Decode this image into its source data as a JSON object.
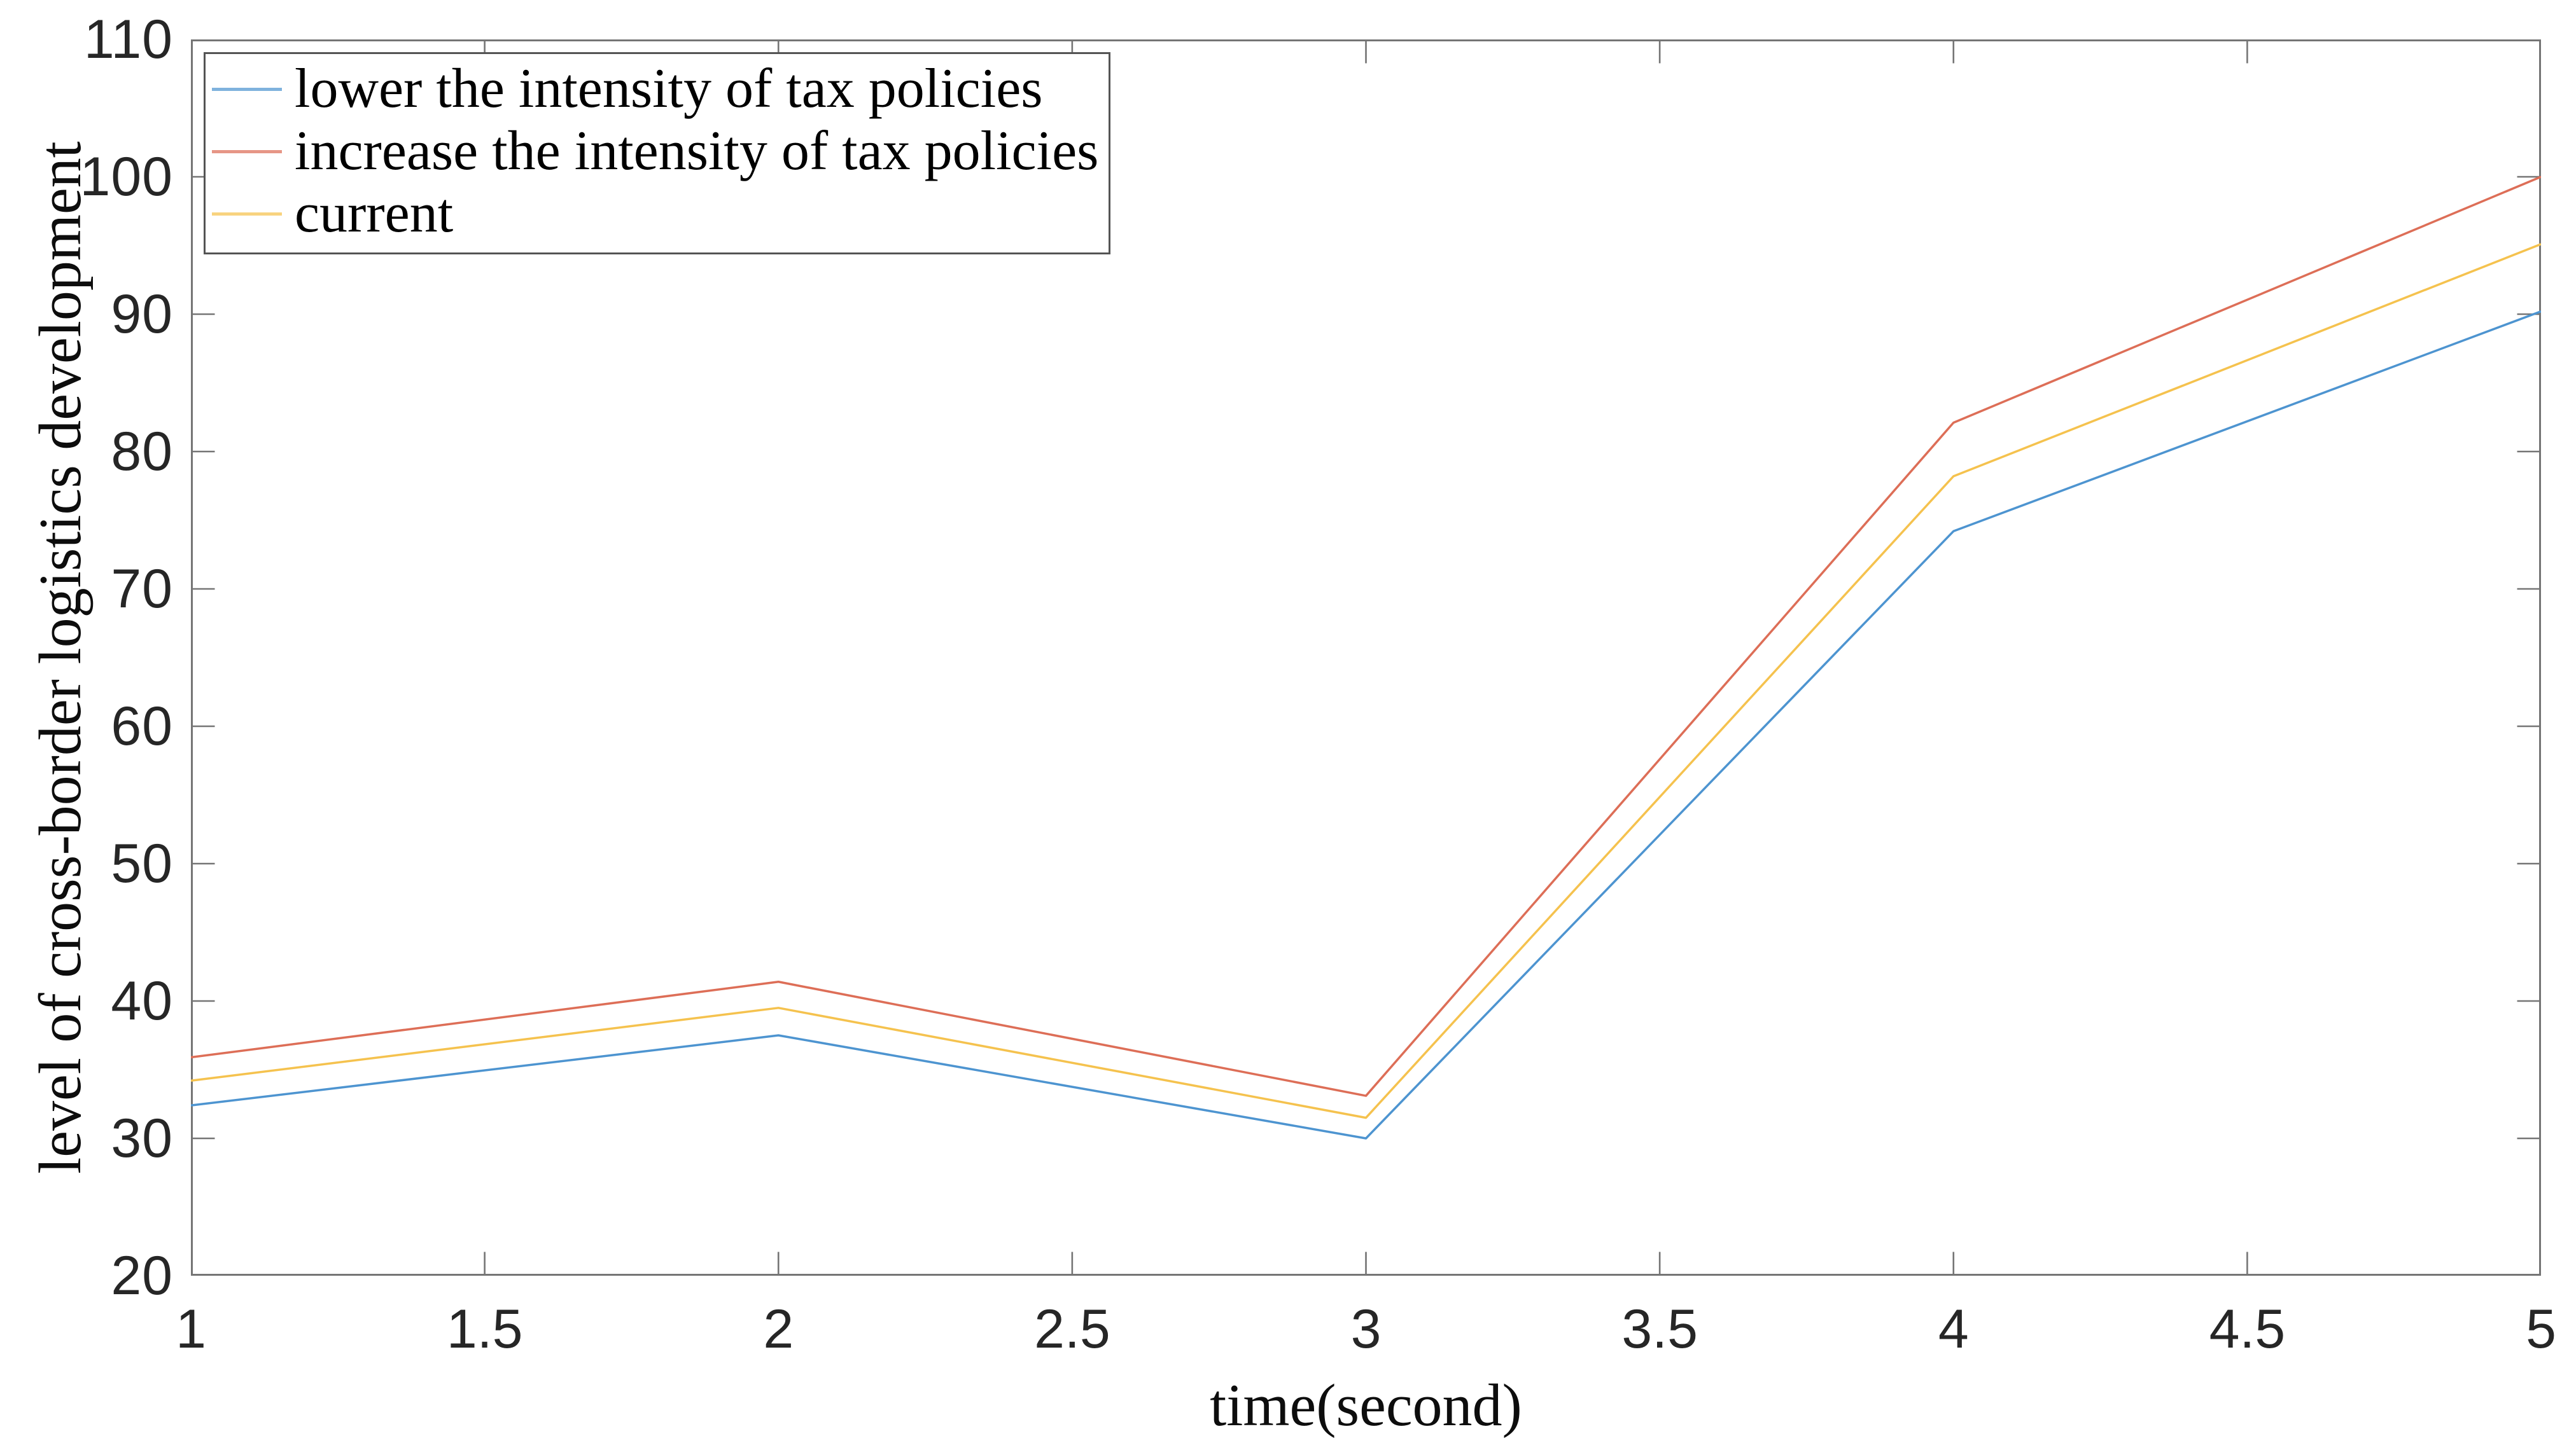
{
  "chart_data": {
    "type": "line",
    "title": "",
    "xlabel": "time(second)",
    "ylabel": "level of cross-border logistics development",
    "x": [
      1,
      2,
      3,
      4,
      5
    ],
    "series": [
      {
        "name": "lower the intensity of tax policies",
        "color": "#4d94d0",
        "values": [
          32.4,
          37.5,
          30.0,
          74.2,
          90.2
        ]
      },
      {
        "name": "increase the intensity of tax policies",
        "color": "#dd6e57",
        "values": [
          35.9,
          41.4,
          33.1,
          82.1,
          100.0
        ]
      },
      {
        "name": "current",
        "color": "#f5c24e",
        "values": [
          34.2,
          39.5,
          31.5,
          78.2,
          95.1
        ]
      }
    ],
    "xlim": [
      1,
      5
    ],
    "ylim": [
      20,
      110
    ],
    "xticks": [
      "1",
      "1.5",
      "2",
      "2.5",
      "3",
      "3.5",
      "4",
      "4.5",
      "5"
    ],
    "yticks": [
      "20",
      "30",
      "40",
      "50",
      "60",
      "70",
      "80",
      "90",
      "100",
      "110"
    ],
    "grid": false,
    "legend_position": "top-left-inside",
    "axes_style": {
      "box": true,
      "tick_direction": "in",
      "spine_color": "#757575",
      "tick_label_color": "#262626",
      "legend_border_color": "#545454",
      "background": "#ffffff"
    }
  }
}
